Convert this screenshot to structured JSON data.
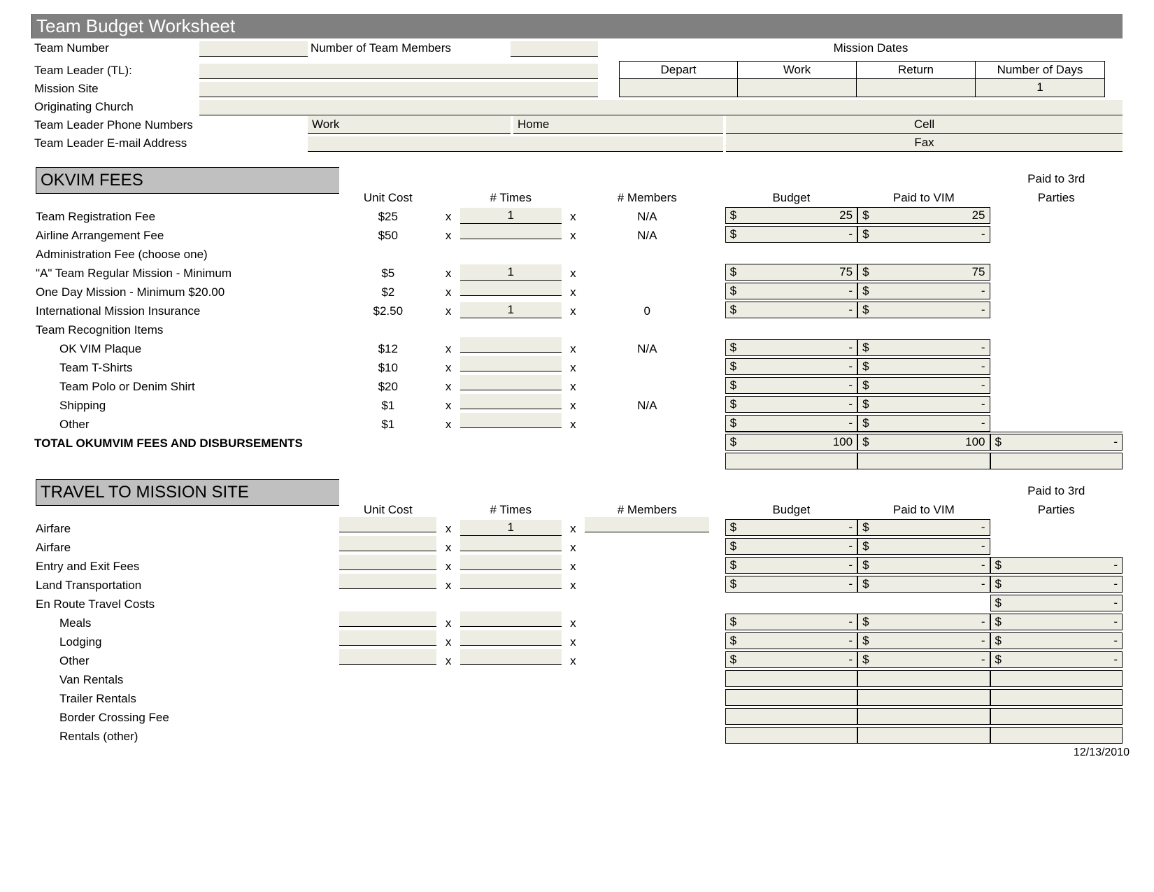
{
  "title": "Team Budget Worksheet",
  "header": {
    "team_number_label": "Team Number",
    "num_members_label": "Number of Team Members",
    "mission_dates_label": "Mission  Dates",
    "team_leader_label": "Team Leader (TL):",
    "depart_label": "Depart",
    "work_label": "Work",
    "return_label": "Return",
    "num_days_label": "Number of Days",
    "num_days_value": "1",
    "mission_site_label": "Mission Site",
    "orig_church_label": "Originating Church",
    "tl_phone_label": "Team Leader Phone Numbers",
    "phone_work_label": "Work",
    "phone_home_label": "Home",
    "phone_cell_label": "Cell",
    "tl_email_label": "Team Leader E-mail Address",
    "fax_label": "Fax"
  },
  "columns": {
    "unit_cost": "Unit Cost",
    "times": "# Times",
    "members": "# Members",
    "budget": "Budget",
    "paid_vim": "Paid to VIM",
    "paid_3rd_a": "Paid to 3rd",
    "paid_3rd_b": "Parties",
    "x": "x"
  },
  "sections": {
    "okvim": {
      "title": "OKVIM FEES",
      "rows": [
        {
          "label": "Team Registration Fee",
          "uc": "$25",
          "times": "1",
          "mem": "N/A",
          "budget": "25",
          "vim": "25",
          "third": null,
          "indent": false,
          "uc_boxed": false
        },
        {
          "label": "Airline Arrangement Fee",
          "uc": "$50",
          "times": "",
          "mem": "N/A",
          "budget": "-",
          "vim": "-",
          "third": null,
          "indent": false,
          "uc_boxed": false
        },
        {
          "label": "Administration Fee (choose one)",
          "uc": null,
          "times": null,
          "mem": null,
          "budget": null,
          "vim": null,
          "third": null,
          "indent": false,
          "uc_boxed": false,
          "heading": true
        },
        {
          "label": "\"A\" Team Regular   Mission - Minimum",
          "uc": "$5",
          "times": "1",
          "mem": "",
          "budget": "75",
          "vim": "75",
          "third": null,
          "indent": false,
          "uc_boxed": false
        },
        {
          "label": " One Day Mission - Minimum $20.00",
          "uc": "$2",
          "times": "",
          "mem": "",
          "budget": "-",
          "vim": "-",
          "third": null,
          "indent": false,
          "uc_boxed": false
        },
        {
          "label": "International Mission Insurance",
          "uc": "$2.50",
          "times": "1",
          "mem": "0",
          "budget": "-",
          "vim": "-",
          "third": null,
          "indent": false,
          "uc_boxed": false
        },
        {
          "label": "Team Recognition Items",
          "uc": null,
          "times": null,
          "mem": null,
          "budget": null,
          "vim": null,
          "third": null,
          "indent": false,
          "uc_boxed": false,
          "heading": true
        },
        {
          "label": "OK VIM Plaque",
          "uc": "$12",
          "times": "",
          "mem": "N/A",
          "budget": "-",
          "vim": "-",
          "third": null,
          "indent": true,
          "uc_boxed": false
        },
        {
          "label": "Team T-Shirts",
          "uc": "$10",
          "times": "",
          "mem": "",
          "budget": "-",
          "vim": "-",
          "third": null,
          "indent": true,
          "uc_boxed": false
        },
        {
          "label": "Team Polo or Denim Shirt",
          "uc": "$20",
          "times": "",
          "mem": "",
          "budget": "-",
          "vim": "-",
          "third": null,
          "indent": true,
          "uc_boxed": false
        },
        {
          "label": "Shipping",
          "uc": "$1",
          "times": "",
          "mem": "N/A",
          "budget": "-",
          "vim": "-",
          "third": null,
          "indent": true,
          "uc_boxed": false
        },
        {
          "label": "Other",
          "uc": "$1",
          "times": "",
          "mem": "",
          "budget": "-",
          "vim": "-",
          "third": null,
          "indent": true,
          "uc_boxed": false
        }
      ],
      "total_label": "TOTAL OKUMVIM FEES AND DISBURSEMENTS",
      "total_budget": "100",
      "total_vim": "100",
      "total_third": "-"
    },
    "travel": {
      "title": "TRAVEL TO MISSION SITE",
      "rows": [
        {
          "label": "Airfare",
          "uc": "",
          "times": "1",
          "mem": "",
          "budget": "-",
          "vim": "-",
          "third": null,
          "indent": false,
          "uc_input": true
        },
        {
          "label": "Airfare",
          "uc": "",
          "times": "",
          "mem": "",
          "budget": "-",
          "vim": "-",
          "third": null,
          "indent": false,
          "uc_input": true
        },
        {
          "label": "Entry and Exit Fees",
          "uc": "",
          "times": "",
          "mem": "",
          "budget": "-",
          "vim": "-",
          "third": "-",
          "indent": false,
          "uc_input": true
        },
        {
          "label": "Land Transportation",
          "uc": "",
          "times": "",
          "mem": "",
          "budget": "-",
          "vim": "-",
          "third": "-",
          "indent": false,
          "uc_input": true
        },
        {
          "label": "En Route Travel Costs",
          "uc": null,
          "times": null,
          "mem": null,
          "budget": null,
          "vim": null,
          "third": "-",
          "indent": false,
          "heading": true
        },
        {
          "label": "Meals",
          "uc": "",
          "times": "",
          "mem": "",
          "budget": "-",
          "vim": "-",
          "third": "-",
          "indent": true,
          "uc_input": true
        },
        {
          "label": "Lodging",
          "uc": "",
          "times": "",
          "mem": "",
          "budget": "-",
          "vim": "-",
          "third": "-",
          "indent": true,
          "uc_input": true
        },
        {
          "label": "Other",
          "uc": "",
          "times": "",
          "mem": "",
          "budget": "-",
          "vim": "-",
          "third": "-",
          "indent": true,
          "uc_input": true
        },
        {
          "label": "Van Rentals",
          "uc": null,
          "times": null,
          "mem": null,
          "budget": "",
          "vim": "",
          "third": "",
          "indent": true,
          "empty_money": true
        },
        {
          "label": "Trailer Rentals",
          "uc": null,
          "times": null,
          "mem": null,
          "budget": "",
          "vim": "",
          "third": "",
          "indent": true,
          "empty_money": true
        },
        {
          "label": "Border Crossing Fee",
          "uc": null,
          "times": null,
          "mem": null,
          "budget": "",
          "vim": "",
          "third": "",
          "indent": true,
          "empty_money": true
        },
        {
          "label": "Rentals (other)",
          "uc": null,
          "times": null,
          "mem": null,
          "budget": "",
          "vim": "",
          "third": "",
          "indent": true,
          "empty_money": true
        }
      ]
    }
  },
  "footer_date": "12/13/2010",
  "colors": {
    "title_bg": "#808080",
    "section_bg": "#c0c0c0",
    "input_bg": "#eeede3",
    "border": "#000000",
    "text": "#000000"
  }
}
